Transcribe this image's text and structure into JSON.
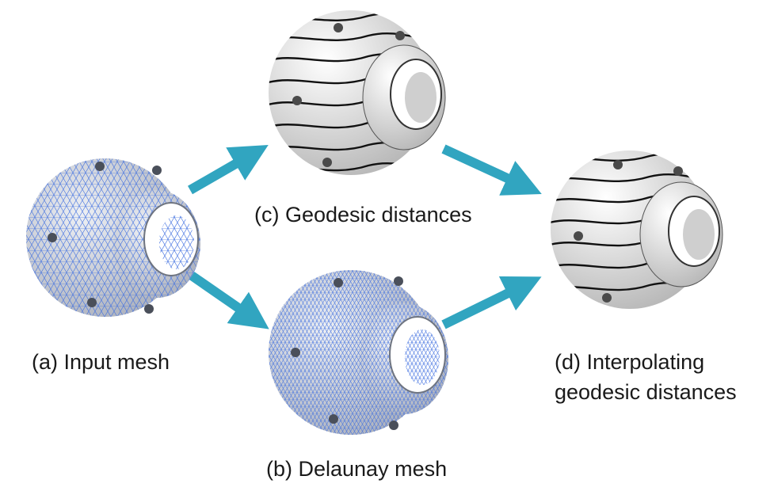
{
  "labels": {
    "a": "(a) Input mesh",
    "b": "(b) Delaunay mesh",
    "c": "(c) Geodesic distances",
    "d_line1": "(d) Interpolating",
    "d_line2": "geodesic distances"
  },
  "colors": {
    "arrow": "#31a5c0",
    "mesh_fill": "#dcdfe6",
    "mesh_lines": "#3f6fe0",
    "surface": "#f2f2f2",
    "contour": "#111111",
    "background": "#ffffff"
  },
  "icons": {
    "a": "input-mesh-hub-image",
    "b": "delaunay-mesh-hub-image",
    "c": "geodesic-contours-hub-image",
    "d": "interpolated-contours-hub-image",
    "arrows": "right-arrow-icon"
  }
}
